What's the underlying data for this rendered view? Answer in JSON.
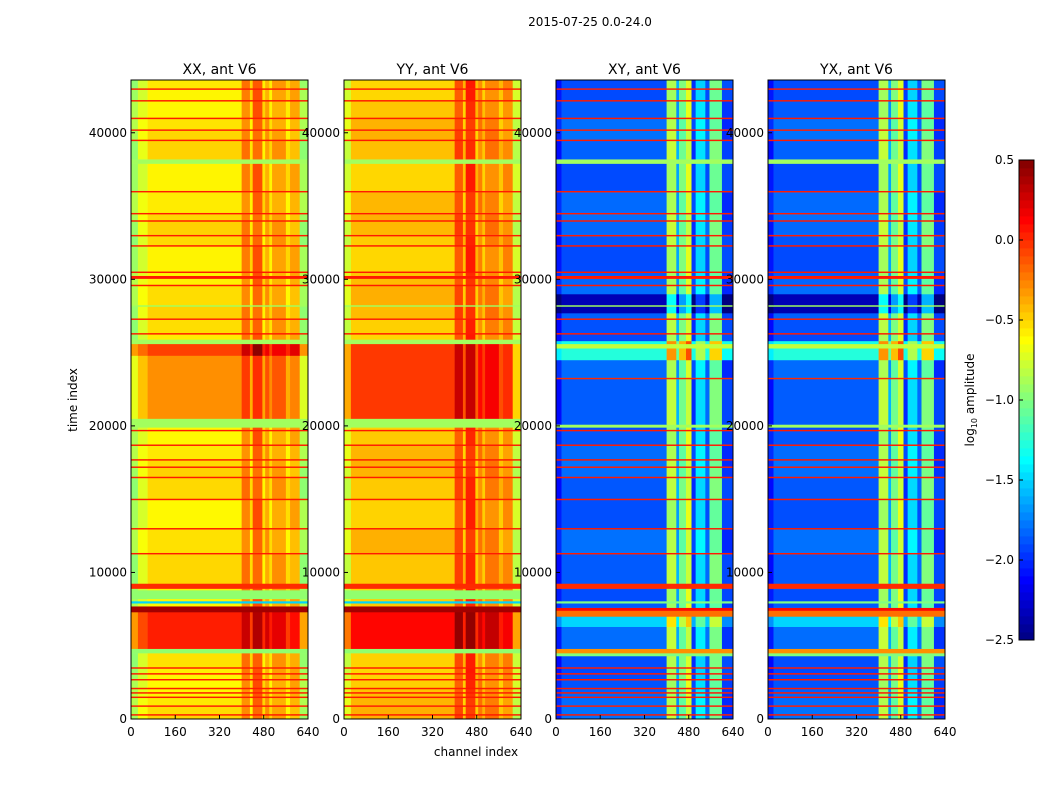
{
  "chart_data": {
    "type": "heatmap",
    "suptitle": "2015-07-25 0.0-24.0",
    "xlabel": "channel index",
    "ylabel": "time index",
    "xlim": [
      0,
      640
    ],
    "ylim": [
      0,
      43600
    ],
    "xticks": [
      "0",
      "160",
      "320",
      "480",
      "640"
    ],
    "yticks": [
      "0",
      "10000",
      "20000",
      "30000",
      "40000"
    ],
    "colormap": "jet",
    "colorbar": {
      "label_main": "log",
      "label_sub": "10",
      "label_rest": " amplitude",
      "vmin": -2.5,
      "vmax": 0.5,
      "ticks": [
        "0.5",
        "0.0",
        "−0.5",
        "−1.0",
        "−1.5",
        "−2.0",
        "−2.5"
      ],
      "tick_values": [
        0.5,
        0.0,
        -0.5,
        -1.0,
        -1.5,
        -2.0,
        -2.5
      ]
    },
    "panels": [
      {
        "title": "XX, ant V6",
        "base": -0.55,
        "column_bands": [
          [
            0,
            25,
            -0.35
          ],
          [
            25,
            60,
            -0.15
          ],
          [
            400,
            430,
            0.3
          ],
          [
            440,
            475,
            0.4
          ],
          [
            485,
            500,
            0.2
          ],
          [
            510,
            560,
            0.2
          ],
          [
            575,
            610,
            0.15
          ],
          [
            610,
            640,
            -0.35
          ]
        ],
        "regions": [
          [
            4800,
            7300,
            0.55
          ],
          [
            20500,
            24800,
            0.2
          ],
          [
            24800,
            25600,
            0.55
          ]
        ],
        "lines": [
          [
            250,
            350,
            0.05
          ],
          [
            850,
            950,
            0.05
          ],
          [
            1450,
            1550,
            0.05
          ],
          [
            1750,
            1850,
            0.05
          ],
          [
            2050,
            2150,
            0.05
          ],
          [
            2650,
            2750,
            0.05
          ],
          [
            3050,
            3150,
            0.05
          ],
          [
            3450,
            3550,
            0.05
          ],
          [
            4500,
            4800,
            -0.95
          ],
          [
            7300,
            7700,
            0.4
          ],
          [
            7900,
            8050,
            -1.5
          ],
          [
            8200,
            8800,
            -0.95
          ],
          [
            8900,
            9250,
            0.0
          ],
          [
            11250,
            11350,
            0.05
          ],
          [
            12950,
            13050,
            0.05
          ],
          [
            14950,
            15050,
            0.05
          ],
          [
            16450,
            16550,
            0.05
          ],
          [
            17150,
            17250,
            0.05
          ],
          [
            17650,
            17750,
            0.05
          ],
          [
            18650,
            18750,
            0.05
          ],
          [
            19650,
            19750,
            0.05
          ],
          [
            19900,
            20500,
            -0.9
          ],
          [
            25600,
            25900,
            -0.9
          ],
          [
            26250,
            26350,
            0.05
          ],
          [
            27250,
            27350,
            0.05
          ],
          [
            28150,
            28250,
            -0.9
          ],
          [
            29550,
            29650,
            0.05
          ],
          [
            30050,
            30250,
            0.05
          ],
          [
            30450,
            30550,
            0.05
          ],
          [
            32250,
            32350,
            0.05
          ],
          [
            32950,
            33050,
            0.05
          ],
          [
            33950,
            34050,
            0.05
          ],
          [
            34450,
            34550,
            0.05
          ],
          [
            35950,
            36050,
            0.05
          ],
          [
            37900,
            38200,
            -0.9
          ],
          [
            39450,
            39550,
            0.05
          ],
          [
            40150,
            40250,
            0.05
          ],
          [
            40950,
            41050,
            0.05
          ],
          [
            42150,
            42250,
            0.05
          ],
          [
            42950,
            43050,
            0.05
          ]
        ]
      },
      {
        "title": "YY, ant V6",
        "base": -0.45,
        "column_bands": [
          [
            0,
            25,
            -0.3
          ],
          [
            400,
            430,
            0.35
          ],
          [
            440,
            475,
            0.45
          ],
          [
            485,
            500,
            0.2
          ],
          [
            510,
            560,
            0.2
          ],
          [
            575,
            610,
            0.15
          ],
          [
            610,
            640,
            -0.35
          ]
        ],
        "regions": [
          [
            4800,
            7300,
            0.5
          ],
          [
            20500,
            25600,
            0.35
          ]
        ],
        "lines": [
          [
            250,
            350,
            0.05
          ],
          [
            850,
            950,
            0.05
          ],
          [
            1450,
            1550,
            0.05
          ],
          [
            1750,
            1850,
            0.05
          ],
          [
            2050,
            2150,
            0.05
          ],
          [
            2650,
            2750,
            0.05
          ],
          [
            3050,
            3150,
            0.05
          ],
          [
            3450,
            3550,
            0.05
          ],
          [
            4500,
            4800,
            -0.95
          ],
          [
            7300,
            7700,
            0.4
          ],
          [
            7900,
            8050,
            -1.5
          ],
          [
            8200,
            8800,
            -0.95
          ],
          [
            8900,
            9250,
            0.0
          ],
          [
            11250,
            11350,
            0.05
          ],
          [
            12950,
            13050,
            0.05
          ],
          [
            14950,
            15050,
            0.05
          ],
          [
            16450,
            16550,
            0.05
          ],
          [
            17150,
            17250,
            0.05
          ],
          [
            17650,
            17750,
            0.05
          ],
          [
            18650,
            18750,
            0.05
          ],
          [
            19650,
            19750,
            0.05
          ],
          [
            19900,
            20500,
            -0.9
          ],
          [
            25600,
            25900,
            -0.9
          ],
          [
            26250,
            26350,
            0.05
          ],
          [
            27250,
            27350,
            0.05
          ],
          [
            28150,
            28250,
            -0.9
          ],
          [
            29550,
            29650,
            0.05
          ],
          [
            30050,
            30250,
            0.05
          ],
          [
            30450,
            30550,
            0.05
          ],
          [
            32250,
            32350,
            0.05
          ],
          [
            32950,
            33050,
            0.05
          ],
          [
            33950,
            34050,
            0.05
          ],
          [
            34450,
            34550,
            0.05
          ],
          [
            35950,
            36050,
            0.05
          ],
          [
            37900,
            38200,
            -0.9
          ],
          [
            39450,
            39550,
            0.05
          ],
          [
            40150,
            40250,
            0.05
          ],
          [
            40950,
            41050,
            0.05
          ],
          [
            42150,
            42250,
            0.05
          ],
          [
            42950,
            43050,
            0.05
          ]
        ]
      },
      {
        "title": "XY, ant V6",
        "base": -1.85,
        "column_bands": [
          [
            0,
            20,
            -0.2
          ],
          [
            400,
            435,
            1.0
          ],
          [
            435,
            445,
            0.2
          ],
          [
            445,
            470,
            0.8
          ],
          [
            470,
            490,
            1.1
          ],
          [
            490,
            505,
            -0.1
          ],
          [
            505,
            540,
            0.4
          ],
          [
            555,
            600,
            0.8
          ],
          [
            600,
            640,
            -0.1
          ]
        ],
        "regions": [
          [
            27700,
            29000,
            -0.55
          ],
          [
            24500,
            25800,
            0.6
          ],
          [
            6300,
            7000,
            0.3
          ]
        ],
        "lines": [
          [
            250,
            350,
            0.05
          ],
          [
            850,
            950,
            0.05
          ],
          [
            1450,
            1550,
            0.05
          ],
          [
            1750,
            1850,
            0.05
          ],
          [
            2050,
            2150,
            0.05
          ],
          [
            2650,
            2750,
            0.05
          ],
          [
            3050,
            3150,
            0.05
          ],
          [
            3450,
            3550,
            0.05
          ],
          [
            4300,
            4500,
            -1.0
          ],
          [
            4500,
            4800,
            -0.3
          ],
          [
            7000,
            7400,
            -0.2
          ],
          [
            7400,
            7600,
            0.1
          ],
          [
            7900,
            8050,
            -1.0
          ],
          [
            8900,
            9250,
            0.0
          ],
          [
            11250,
            11350,
            0.05
          ],
          [
            12950,
            13050,
            0.05
          ],
          [
            14950,
            15050,
            0.05
          ],
          [
            16450,
            16550,
            0.05
          ],
          [
            17150,
            17250,
            0.05
          ],
          [
            17650,
            17750,
            0.05
          ],
          [
            18650,
            18750,
            0.05
          ],
          [
            19650,
            19750,
            0.05
          ],
          [
            19900,
            20100,
            -0.9
          ],
          [
            23200,
            23300,
            0.0
          ],
          [
            25300,
            25600,
            -0.8
          ],
          [
            26250,
            26350,
            0.05
          ],
          [
            27250,
            27350,
            0.05
          ],
          [
            28150,
            28250,
            -0.9
          ],
          [
            29550,
            29650,
            0.05
          ],
          [
            30050,
            30250,
            0.05
          ],
          [
            30450,
            30550,
            0.05
          ],
          [
            32250,
            32350,
            0.05
          ],
          [
            32950,
            33050,
            0.05
          ],
          [
            33950,
            34050,
            0.05
          ],
          [
            34450,
            34550,
            0.05
          ],
          [
            35950,
            36050,
            0.05
          ],
          [
            37900,
            38200,
            -0.9
          ],
          [
            39450,
            39550,
            0.05
          ],
          [
            40150,
            40250,
            0.05
          ],
          [
            40950,
            41050,
            0.05
          ],
          [
            42150,
            42250,
            0.05
          ],
          [
            42950,
            43050,
            0.05
          ]
        ]
      },
      {
        "title": "YX, ant V6",
        "base": -1.85,
        "column_bands": [
          [
            0,
            20,
            -0.2
          ],
          [
            400,
            435,
            1.0
          ],
          [
            435,
            445,
            0.2
          ],
          [
            445,
            470,
            0.8
          ],
          [
            470,
            490,
            1.1
          ],
          [
            490,
            505,
            -0.1
          ],
          [
            505,
            540,
            0.4
          ],
          [
            555,
            600,
            0.8
          ],
          [
            600,
            640,
            -0.1
          ]
        ],
        "regions": [
          [
            27700,
            29000,
            -0.55
          ],
          [
            24500,
            25800,
            0.6
          ],
          [
            6300,
            7000,
            0.3
          ]
        ],
        "lines": [
          [
            250,
            350,
            0.05
          ],
          [
            850,
            950,
            0.05
          ],
          [
            1450,
            1550,
            0.05
          ],
          [
            1750,
            1850,
            0.05
          ],
          [
            2050,
            2150,
            0.05
          ],
          [
            2650,
            2750,
            0.05
          ],
          [
            3050,
            3150,
            0.05
          ],
          [
            3450,
            3550,
            0.05
          ],
          [
            4300,
            4500,
            -1.0
          ],
          [
            4500,
            4800,
            -0.3
          ],
          [
            7000,
            7400,
            -0.2
          ],
          [
            7400,
            7600,
            0.1
          ],
          [
            7900,
            8050,
            -1.0
          ],
          [
            8900,
            9250,
            0.0
          ],
          [
            11250,
            11350,
            0.05
          ],
          [
            12950,
            13050,
            0.05
          ],
          [
            14950,
            15050,
            0.05
          ],
          [
            16450,
            16550,
            0.05
          ],
          [
            17150,
            17250,
            0.05
          ],
          [
            17650,
            17750,
            0.05
          ],
          [
            18650,
            18750,
            0.05
          ],
          [
            19650,
            19750,
            0.05
          ],
          [
            19900,
            20100,
            -0.9
          ],
          [
            23200,
            23300,
            0.0
          ],
          [
            25300,
            25600,
            -0.8
          ],
          [
            26250,
            26350,
            0.05
          ],
          [
            27250,
            27350,
            0.05
          ],
          [
            28150,
            28250,
            -0.9
          ],
          [
            29550,
            29650,
            0.05
          ],
          [
            30050,
            30250,
            0.05
          ],
          [
            30450,
            30550,
            0.05
          ],
          [
            32250,
            32350,
            0.05
          ],
          [
            32950,
            33050,
            0.05
          ],
          [
            33950,
            34050,
            0.05
          ],
          [
            34450,
            34550,
            0.05
          ],
          [
            35950,
            36050,
            0.05
          ],
          [
            37900,
            38200,
            -0.9
          ],
          [
            39450,
            39550,
            0.05
          ],
          [
            40150,
            40250,
            0.05
          ],
          [
            40950,
            41050,
            0.05
          ],
          [
            42150,
            42250,
            0.05
          ],
          [
            42950,
            43050,
            0.05
          ]
        ]
      }
    ]
  }
}
